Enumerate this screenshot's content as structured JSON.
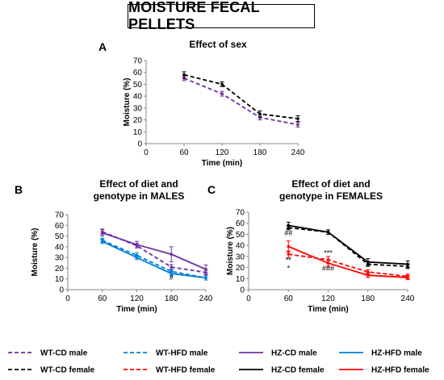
{
  "figure": {
    "title": "MOISTURE FECAL PELLETS"
  },
  "colors": {
    "wt": "#000000",
    "purple": "#7030A0",
    "blue": "#0080D8",
    "red": "#FF0000"
  },
  "legend": [
    {
      "label": "WT-CD male",
      "color": "#7030A0",
      "dash": true
    },
    {
      "label": "WT-HFD male",
      "color": "#0080D8",
      "dash": true
    },
    {
      "label": "HZ-CD male",
      "color": "#7030A0",
      "dash": false
    },
    {
      "label": "HZ-HFD male",
      "color": "#0080D8",
      "dash": false
    },
    {
      "label": "WT-CD female",
      "color": "#000000",
      "dash": true
    },
    {
      "label": "WT-HFD female",
      "color": "#FF0000",
      "dash": true
    },
    {
      "label": "HZ-CD female",
      "color": "#000000",
      "dash": false
    },
    {
      "label": "HZ-HFD female",
      "color": "#FF0000",
      "dash": false
    }
  ],
  "chart_data": [
    {
      "type": "line",
      "letter": "A",
      "title": [
        "Effect of sex"
      ],
      "xlabel": "Time (min)",
      "ylabel": "Moisture (%)",
      "xlim": [
        0,
        240
      ],
      "ylim": [
        0,
        70
      ],
      "xticks": [
        0,
        60,
        120,
        180,
        240
      ],
      "yticks": [
        0,
        10,
        20,
        30,
        40,
        50,
        60,
        70
      ],
      "x": [
        60,
        120,
        180,
        240
      ],
      "series": [
        {
          "name": "WT-CD male",
          "color": "#7030A0",
          "dash": true,
          "values": [
            55,
            42,
            22,
            16
          ],
          "err": [
            2,
            2,
            2,
            2
          ]
        },
        {
          "name": "WT-CD female",
          "color": "#000000",
          "dash": true,
          "values": [
            58,
            50,
            25,
            21
          ],
          "err": [
            2.5,
            2,
            2.5,
            2.5
          ]
        }
      ],
      "annotations": []
    },
    {
      "type": "line",
      "letter": "B",
      "title": [
        "Effect of diet and",
        "genotype in MALES"
      ],
      "xlabel": "Time (min)",
      "ylabel": "Moisture (%)",
      "xlim": [
        0,
        240
      ],
      "ylim": [
        0,
        70
      ],
      "xticks": [
        0,
        60,
        120,
        180,
        240
      ],
      "yticks": [
        0,
        10,
        20,
        30,
        40,
        50,
        60,
        70
      ],
      "x": [
        60,
        120,
        180,
        240
      ],
      "series": [
        {
          "name": "WT-CD male",
          "color": "#7030A0",
          "dash": true,
          "values": [
            54,
            41,
            21,
            16
          ],
          "err": [
            2.5,
            2,
            2.5,
            2
          ]
        },
        {
          "name": "HZ-CD male",
          "color": "#7030A0",
          "dash": false,
          "values": [
            53,
            42,
            33,
            19
          ],
          "err": [
            3,
            3,
            7,
            4
          ]
        },
        {
          "name": "WT-HFD male",
          "color": "#0080D8",
          "dash": true,
          "values": [
            46,
            32,
            17,
            11
          ],
          "err": [
            2,
            2.5,
            2,
            2
          ]
        },
        {
          "name": "HZ-HFD male",
          "color": "#0080D8",
          "dash": false,
          "values": [
            45,
            30,
            15,
            11
          ],
          "err": [
            2,
            2,
            2,
            2
          ]
        }
      ],
      "annotations": [
        {
          "text": "#",
          "x": 180,
          "y": 9
        }
      ]
    },
    {
      "type": "line",
      "letter": "C",
      "title": [
        "Effect of diet and",
        "genotype in FEMALES"
      ],
      "xlabel": "Time (min)",
      "ylabel": "Moisture (%)",
      "xlim": [
        0,
        240
      ],
      "ylim": [
        0,
        70
      ],
      "xticks": [
        0,
        60,
        120,
        180,
        240
      ],
      "yticks": [
        0,
        10,
        20,
        30,
        40,
        50,
        60,
        70
      ],
      "x": [
        60,
        120,
        180,
        240
      ],
      "series": [
        {
          "name": "WT-CD female",
          "color": "#000000",
          "dash": true,
          "values": [
            56,
            52,
            23,
            21
          ],
          "err": [
            2,
            2,
            2,
            2
          ]
        },
        {
          "name": "HZ-CD female",
          "color": "#000000",
          "dash": false,
          "values": [
            58,
            52,
            25,
            23
          ],
          "err": [
            3,
            2,
            3,
            3
          ]
        },
        {
          "name": "WT-HFD female",
          "color": "#FF0000",
          "dash": true,
          "values": [
            32,
            27,
            16,
            12
          ],
          "err": [
            3,
            3,
            2,
            2
          ]
        },
        {
          "name": "HZ-HFD female",
          "color": "#FF0000",
          "dash": false,
          "values": [
            39,
            24,
            13,
            11
          ],
          "err": [
            5,
            3,
            2,
            2
          ]
        }
      ],
      "annotations": [
        {
          "text": "##",
          "x": 60,
          "y": 49
        },
        {
          "text": "**",
          "x": 60,
          "y": 24.5
        },
        {
          "text": "*",
          "x": 60,
          "y": 17
        },
        {
          "text": "***",
          "x": 120,
          "y": 31
        },
        {
          "text": "###",
          "x": 120,
          "y": 17
        }
      ]
    }
  ]
}
